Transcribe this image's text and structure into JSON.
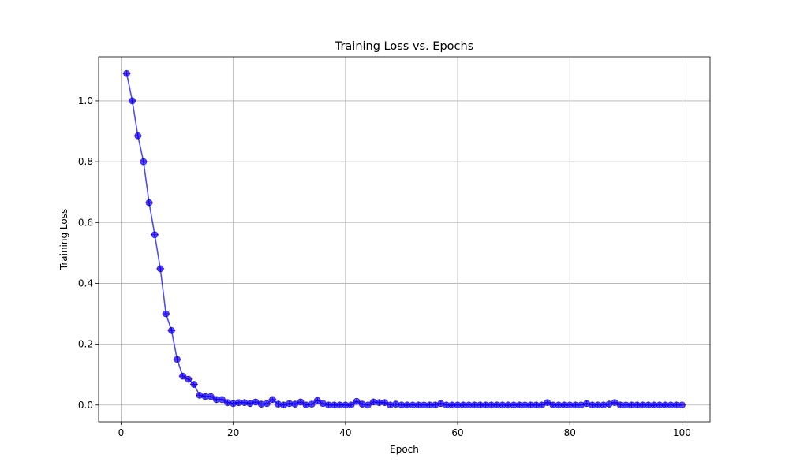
{
  "chart_data": {
    "type": "line",
    "title": "Training Loss vs. Epochs",
    "xlabel": "Epoch",
    "ylabel": "Training Loss",
    "xlim": [
      -4,
      105
    ],
    "ylim": [
      -0.055,
      1.145
    ],
    "xticks": [
      0,
      20,
      40,
      60,
      80,
      100
    ],
    "yticks": [
      0.0,
      0.2,
      0.4,
      0.6,
      0.8,
      1.0
    ],
    "ytick_labels": [
      "0.0",
      "0.2",
      "0.4",
      "0.6",
      "0.8",
      "1.0"
    ],
    "grid": true,
    "colors": {
      "line": "#0000ff",
      "marker": "#0000ff",
      "error_bar": "#ff0000"
    },
    "x": [
      1,
      2,
      3,
      4,
      5,
      6,
      7,
      8,
      9,
      10,
      11,
      12,
      13,
      14,
      15,
      16,
      17,
      18,
      19,
      20,
      21,
      22,
      23,
      24,
      25,
      26,
      27,
      28,
      29,
      30,
      31,
      32,
      33,
      34,
      35,
      36,
      37,
      38,
      39,
      40,
      41,
      42,
      43,
      44,
      45,
      46,
      47,
      48,
      49,
      50,
      51,
      52,
      53,
      54,
      55,
      56,
      57,
      58,
      59,
      60,
      61,
      62,
      63,
      64,
      65,
      66,
      67,
      68,
      69,
      70,
      71,
      72,
      73,
      74,
      75,
      76,
      77,
      78,
      79,
      80,
      81,
      82,
      83,
      84,
      85,
      86,
      87,
      88,
      89,
      90,
      91,
      92,
      93,
      94,
      95,
      96,
      97,
      98,
      99,
      100
    ],
    "series": [
      {
        "values": [
          1.09,
          1.0,
          0.885,
          0.8,
          0.665,
          0.56,
          0.448,
          0.3,
          0.245,
          0.15,
          0.095,
          0.085,
          0.068,
          0.032,
          0.028,
          0.028,
          0.018,
          0.018,
          0.008,
          0.005,
          0.008,
          0.008,
          0.005,
          0.01,
          0.003,
          0.005,
          0.018,
          0.003,
          0.0,
          0.005,
          0.003,
          0.01,
          0.0,
          0.003,
          0.015,
          0.005,
          0.0,
          0.0,
          0.0,
          0.0,
          0.0,
          0.012,
          0.003,
          0.0,
          0.01,
          0.008,
          0.008,
          0.0,
          0.003,
          0.0,
          0.0,
          0.0,
          0.0,
          0.0,
          0.0,
          0.0,
          0.005,
          0.0,
          0.0,
          0.0,
          0.0,
          0.0,
          0.0,
          0.0,
          0.0,
          0.0,
          0.0,
          0.0,
          0.0,
          0.0,
          0.0,
          0.0,
          0.0,
          0.0,
          0.0,
          0.008,
          0.0,
          0.0,
          0.0,
          0.0,
          0.0,
          0.0,
          0.005,
          0.0,
          0.0,
          0.0,
          0.003,
          0.008,
          0.0,
          0.0,
          0.0,
          0.0,
          0.0,
          0.0,
          0.0,
          0.0,
          0.0,
          0.0,
          0.0,
          0.0
        ],
        "error": 0.01
      }
    ]
  }
}
